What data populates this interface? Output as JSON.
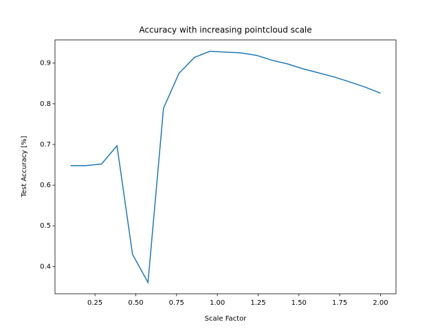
{
  "chart_data": {
    "type": "line",
    "title": "Accuracy with increasing pointcloud scale",
    "x_label": "Scale Factor",
    "y_label": "Test Accuracy [%]",
    "x": [
      0.1,
      0.195,
      0.29,
      0.385,
      0.48,
      0.575,
      0.67,
      0.765,
      0.86,
      0.955,
      1.05,
      1.145,
      1.24,
      1.335,
      1.43,
      1.525,
      1.62,
      1.715,
      1.81,
      1.905,
      2.0
    ],
    "series": [
      {
        "name": "accuracy",
        "color": "#1f77b4",
        "values": [
          0.648,
          0.648,
          0.652,
          0.697,
          0.43,
          0.361,
          0.789,
          0.875,
          0.914,
          0.929,
          0.927,
          0.925,
          0.919,
          0.907,
          0.898,
          0.886,
          0.876,
          0.866,
          0.854,
          0.841,
          0.826
        ]
      }
    ],
    "xlim": [
      0.005,
      2.095
    ],
    "ylim": [
      0.333,
      0.957
    ],
    "xticks": [
      0.25,
      {
        "value": 0.5,
        "label": "0.50"
      },
      0.75,
      {
        "value": 1,
        "label": "1.00"
      },
      1.25,
      {
        "value": 1.5,
        "label": "1.50"
      },
      1.75,
      {
        "value": 2,
        "label": "2.00"
      }
    ],
    "yticks": [
      0.4,
      0.5,
      0.6,
      0.7,
      0.8,
      0.9
    ]
  }
}
